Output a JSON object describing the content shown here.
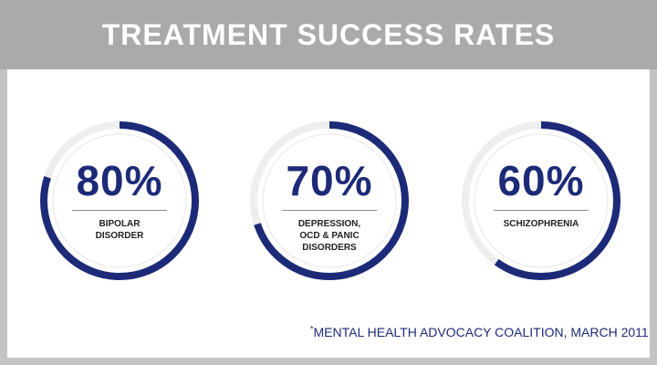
{
  "title": "TREATMENT SUCCESS RATES",
  "chart_data": [
    {
      "type": "pie",
      "value": 80,
      "unit": "%",
      "label": "80%",
      "category": "BIPOLAR DISORDER",
      "color": "#1d2a78"
    },
    {
      "type": "pie",
      "value": 70,
      "unit": "%",
      "label": "70%",
      "category": "DEPRESSION, OCD & PANIC DISORDERS",
      "color": "#1d2a78"
    },
    {
      "type": "pie",
      "value": 60,
      "unit": "%",
      "label": "60%",
      "category": "SCHIZOPHRENIA",
      "color": "#1d2a78"
    }
  ],
  "display": {
    "gauges": [
      {
        "value_text": "80%",
        "label_text": "BIPOLAR\nDISORDER"
      },
      {
        "value_text": "70%",
        "label_text": "DEPRESSION,\nOCD & PANIC\nDISORDERS"
      },
      {
        "value_text": "60%",
        "label_text": "SCHIZOPHRENIA"
      }
    ]
  },
  "footnote": {
    "star": "*",
    "text": "MENTAL HEALTH ADVOCACY COALITION, MARCH 2011"
  },
  "colors": {
    "accent": "#1d2a78",
    "track": "#eeeeee",
    "header": "#aaa9ab",
    "frame": "#c3c2c4",
    "panel": "#ffffff"
  }
}
